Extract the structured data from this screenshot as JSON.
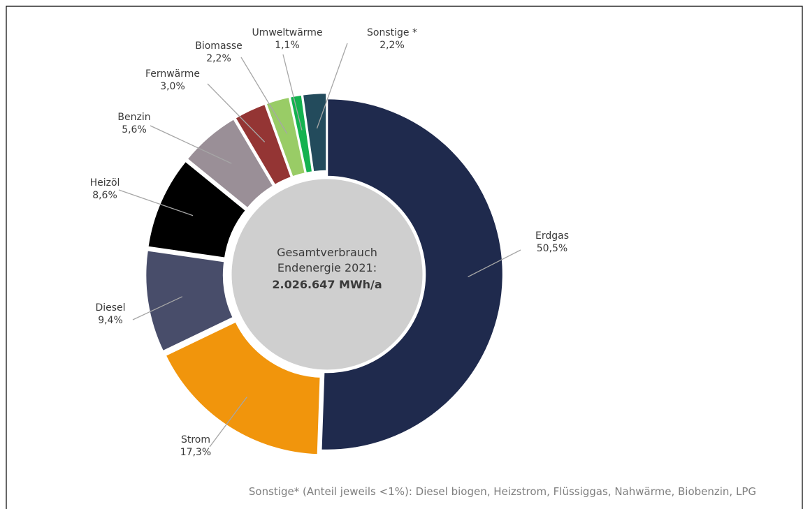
{
  "chart_data": {
    "type": "pie",
    "variant": "donut",
    "center": {
      "line1": "Gesamtverbrauch",
      "line2": "Endenergie 2021:",
      "line3": "2.026.647 MWh/a"
    },
    "start_angle_deg": 0,
    "direction": "clockwise",
    "slices": [
      {
        "name": "Erdgas",
        "value": 50.5,
        "label": "50,5%",
        "color": "#1f2a4d",
        "pull": 0
      },
      {
        "name": "Strom",
        "value": 17.3,
        "label": "17,3%",
        "color": "#f1950c",
        "pull": 8
      },
      {
        "name": "Diesel",
        "value": 9.4,
        "label": "9,4%",
        "color": "#484d6a",
        "pull": 8
      },
      {
        "name": "Heizöl",
        "value": 8.6,
        "label": "8,6%",
        "color": "#000000",
        "pull": 8
      },
      {
        "name": "Benzin",
        "value": 5.6,
        "label": "5,6%",
        "color": "#9a8f97",
        "pull": 8
      },
      {
        "name": "Fernwärme",
        "value": 3.0,
        "label": "3,0%",
        "color": "#943534",
        "pull": 8
      },
      {
        "name": "Biomasse",
        "value": 2.2,
        "label": "2,2%",
        "color": "#99cc66",
        "pull": 8
      },
      {
        "name": "Umweltwärme",
        "value": 1.1,
        "label": "1,1%",
        "color": "#14b24f",
        "pull": 8
      },
      {
        "name": "Sonstige *",
        "value": 2.2,
        "label": "2,2%",
        "color": "#234b5c",
        "pull": 8
      }
    ],
    "footnote": "Sonstige* (Anteil jeweils <1%): Diesel biogen, Heizstrom, Flüssiggas, Nahwärme, Biobenzin, LPG",
    "center_fill": "#cfcfcf",
    "leader_color": "#a6a6a6",
    "frame_color": "#000000",
    "legend": "none"
  }
}
